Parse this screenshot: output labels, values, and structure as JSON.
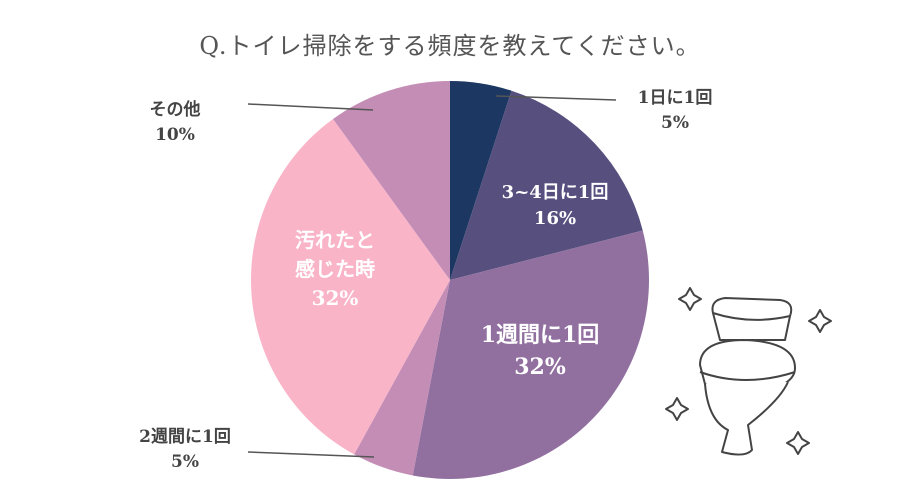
{
  "chart_data": {
    "type": "pie",
    "title": "Q.トイレ掃除をする頻度を教えてください。",
    "start_angle": "top, clockwise",
    "slices": [
      {
        "label": "1日に1回",
        "value": 5,
        "display": "5%",
        "color": "#1b3762"
      },
      {
        "label": "3~4日に1回",
        "value": 16,
        "display": "16%",
        "color": "#57507f"
      },
      {
        "label": "1週間に1回",
        "value": 32,
        "display": "32%",
        "color": "#9170a0"
      },
      {
        "label": "2週間に1回",
        "value": 5,
        "display": "5%",
        "color": "#c48db5"
      },
      {
        "label": "汚れたと感じた時",
        "label_lines": [
          "汚れたと",
          "感じた時"
        ],
        "value": 32,
        "display": "32%",
        "color": "#f9b4c8"
      },
      {
        "label": "その他",
        "value": 10,
        "display": "10%",
        "color": "#c48db5"
      }
    ]
  },
  "illustration": {
    "icon": "toilet-with-sparkles-icon"
  }
}
